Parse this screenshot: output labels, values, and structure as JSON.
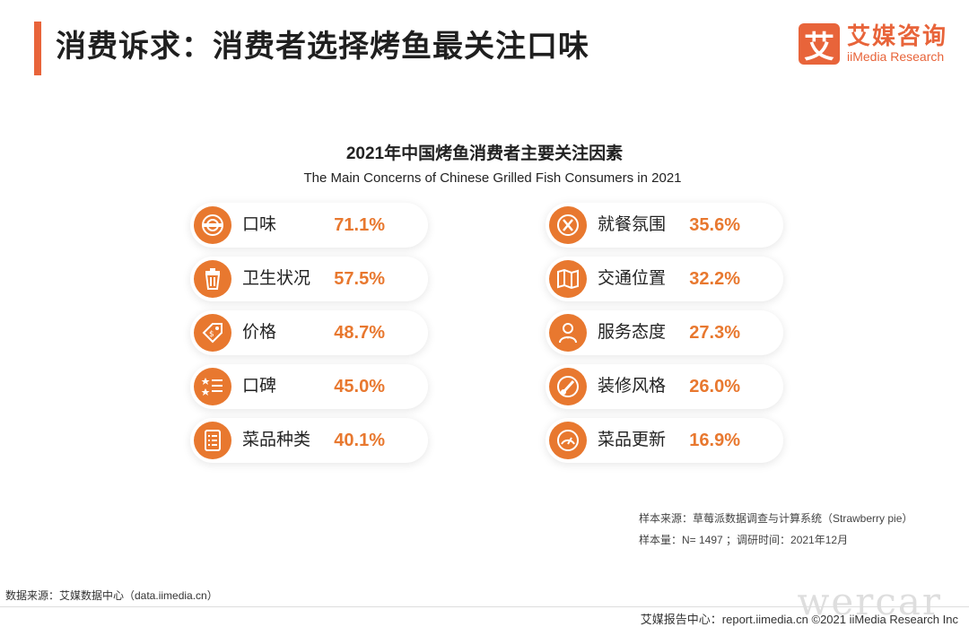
{
  "header": {
    "title": "消费诉求：消费者选择烤鱼最关注口味",
    "brand_mark": "艾",
    "brand_cn": "艾媒咨询",
    "brand_en": "iiMedia Research"
  },
  "chart_data": {
    "type": "table",
    "title": "2021年中国烤鱼消费者主要关注因素",
    "subtitle": "The Main Concerns of Chinese  Grilled Fish Consumers in 2021",
    "unit": "%",
    "items": [
      {
        "label": "口味",
        "value": 71.1,
        "display": "71.1%",
        "icon": "taste-icon"
      },
      {
        "label": "卫生状况",
        "value": 57.5,
        "display": "57.5%",
        "icon": "trash-bin-icon"
      },
      {
        "label": "价格",
        "value": 48.7,
        "display": "48.7%",
        "icon": "price-tag-icon"
      },
      {
        "label": "口碑",
        "value": 45.0,
        "display": "45.0%",
        "icon": "rating-list-icon"
      },
      {
        "label": "菜品种类",
        "value": 40.1,
        "display": "40.1%",
        "icon": "menu-icon"
      },
      {
        "label": "就餐氛围",
        "value": 35.6,
        "display": "35.6%",
        "icon": "cutlery-icon"
      },
      {
        "label": "交通位置",
        "value": 32.2,
        "display": "32.2%",
        "icon": "map-icon"
      },
      {
        "label": "服务态度",
        "value": 27.3,
        "display": "27.3%",
        "icon": "waiter-icon"
      },
      {
        "label": "装修风格",
        "value": 26.0,
        "display": "26.0%",
        "icon": "brush-icon"
      },
      {
        "label": "菜品更新",
        "value": 16.9,
        "display": "16.9%",
        "icon": "gauge-icon"
      }
    ]
  },
  "notes": {
    "source": "样本来源：草莓派数据调查与计算系统（Strawberry pie）",
    "sample": "样本量：N= 1497 ；调研时间：2021年12月"
  },
  "footer": {
    "data_source": "数据来源：艾媒数据中心（data.iimedia.cn）",
    "report": "艾媒报告中心：report.iimedia.cn   ©2021  iiMedia Research  Inc",
    "watermark": "wercar"
  },
  "colors": {
    "accent": "#e8643a",
    "icon_bg": "#e8782f"
  }
}
